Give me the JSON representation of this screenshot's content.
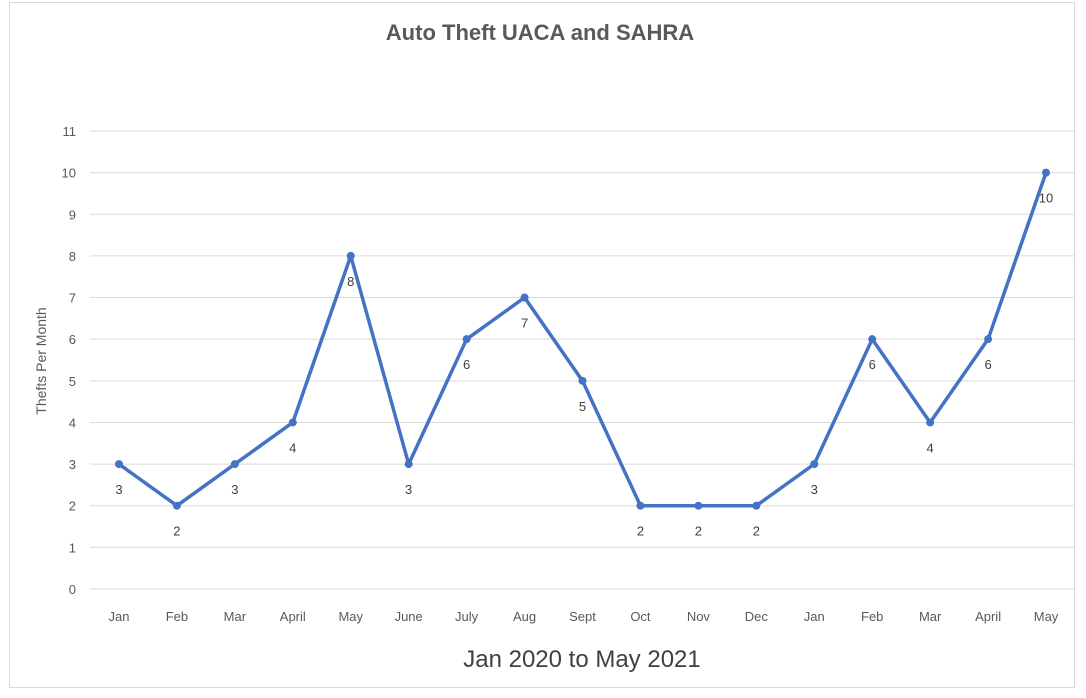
{
  "chart_data": {
    "type": "line",
    "title": "Auto Theft UACA and SAHRA",
    "xlabel": "Jan 2020 to May 2021",
    "ylabel": "Thefts Per Month",
    "ylim": [
      0,
      11
    ],
    "yticks": [
      0,
      1,
      2,
      3,
      4,
      5,
      6,
      7,
      8,
      9,
      10,
      11
    ],
    "grid": true,
    "legend": "none",
    "categories": [
      "Jan",
      "Feb",
      "Mar",
      "April",
      "May",
      "June",
      "July",
      "Aug",
      "Sept",
      "Oct",
      "Nov",
      "Dec",
      "Jan",
      "Feb",
      "Mar",
      "April",
      "May"
    ],
    "series": [
      {
        "values": [
          3,
          2,
          3,
          4,
          8,
          3,
          6,
          7,
          5,
          2,
          2,
          2,
          3,
          6,
          4,
          6,
          10
        ],
        "color": "#4472c4",
        "data_labels": true
      }
    ]
  }
}
